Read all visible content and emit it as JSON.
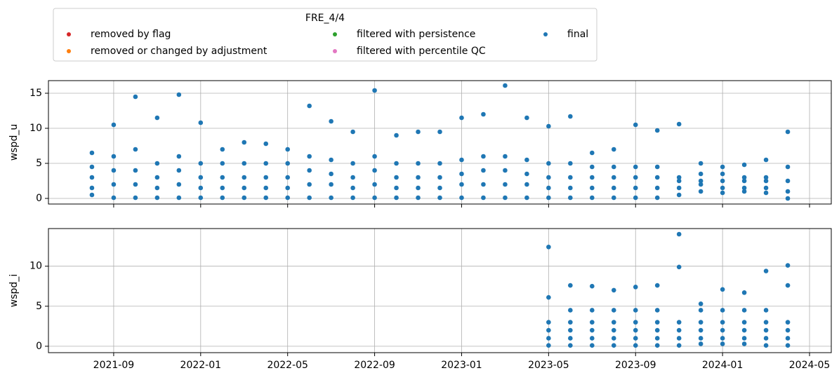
{
  "chart_data": [
    {
      "type": "scatter",
      "legend_title": "FRE_4/4",
      "ylabel": "wspd_u",
      "xlim": [
        "2021-06",
        "2024-06"
      ],
      "ylim": [
        -0.8,
        16.8
      ],
      "yticks": [
        0,
        5,
        10,
        15
      ],
      "grid": true,
      "series": [
        {
          "name": "removed by flag",
          "color": "#d62728",
          "x": [],
          "values": []
        },
        {
          "name": "removed or changed by adjustment",
          "color": "#ff7f0e",
          "x": [],
          "values": []
        },
        {
          "name": "filtered with persistence",
          "color": "#2ca02c",
          "x": [],
          "values": []
        },
        {
          "name": "filtered with percentile QC",
          "color": "#e377c2",
          "x": [],
          "values": []
        },
        {
          "name": "final",
          "color": "#1f77b4",
          "x": [
            "2021-08",
            "2021-08",
            "2021-08",
            "2021-08",
            "2021-08",
            "2021-09",
            "2021-09",
            "2021-09",
            "2021-09",
            "2021-09",
            "2021-10",
            "2021-10",
            "2021-10",
            "2021-10",
            "2021-10",
            "2021-11",
            "2021-11",
            "2021-11",
            "2021-11",
            "2021-11",
            "2021-12",
            "2021-12",
            "2021-12",
            "2021-12",
            "2021-12",
            "2022-01",
            "2022-01",
            "2022-01",
            "2022-01",
            "2022-01",
            "2022-02",
            "2022-02",
            "2022-02",
            "2022-02",
            "2022-02",
            "2022-03",
            "2022-03",
            "2022-03",
            "2022-03",
            "2022-03",
            "2022-04",
            "2022-04",
            "2022-04",
            "2022-04",
            "2022-04",
            "2022-05",
            "2022-05",
            "2022-05",
            "2022-05",
            "2022-05",
            "2022-06",
            "2022-06",
            "2022-06",
            "2022-06",
            "2022-06",
            "2022-07",
            "2022-07",
            "2022-07",
            "2022-07",
            "2022-07",
            "2022-08",
            "2022-08",
            "2022-08",
            "2022-08",
            "2022-08",
            "2022-09",
            "2022-09",
            "2022-09",
            "2022-09",
            "2022-09",
            "2022-10",
            "2022-10",
            "2022-10",
            "2022-10",
            "2022-10",
            "2022-11",
            "2022-11",
            "2022-11",
            "2022-11",
            "2022-11",
            "2022-12",
            "2022-12",
            "2022-12",
            "2022-12",
            "2022-12",
            "2023-01",
            "2023-01",
            "2023-01",
            "2023-01",
            "2023-01",
            "2023-02",
            "2023-02",
            "2023-02",
            "2023-02",
            "2023-02",
            "2023-03",
            "2023-03",
            "2023-03",
            "2023-03",
            "2023-03",
            "2023-04",
            "2023-04",
            "2023-04",
            "2023-04",
            "2023-04",
            "2023-05",
            "2023-05",
            "2023-05",
            "2023-05",
            "2023-05",
            "2023-06",
            "2023-06",
            "2023-06",
            "2023-06",
            "2023-06",
            "2023-07",
            "2023-07",
            "2023-07",
            "2023-07",
            "2023-07",
            "2023-08",
            "2023-08",
            "2023-08",
            "2023-08",
            "2023-08",
            "2023-09",
            "2023-09",
            "2023-09",
            "2023-09",
            "2023-09",
            "2023-10",
            "2023-10",
            "2023-10",
            "2023-10",
            "2023-10",
            "2023-11",
            "2023-11",
            "2023-11",
            "2023-11",
            "2023-11",
            "2023-12",
            "2023-12",
            "2023-12",
            "2023-12",
            "2023-12",
            "2024-01",
            "2024-01",
            "2024-01",
            "2024-01",
            "2024-01",
            "2024-02",
            "2024-02",
            "2024-02",
            "2024-02",
            "2024-02",
            "2024-03",
            "2024-03",
            "2024-03",
            "2024-03",
            "2024-03",
            "2024-04",
            "2024-04",
            "2024-04",
            "2024-04",
            "2024-04"
          ],
          "values": [
            0.5,
            1.5,
            3,
            4.5,
            6.5,
            0.1,
            2,
            4,
            6,
            10.5,
            0.1,
            2,
            4,
            7,
            14.5,
            0.1,
            1.5,
            3,
            5,
            11.5,
            0.1,
            2,
            4,
            6,
            14.8,
            0.1,
            1.5,
            3,
            5,
            10.8,
            0.1,
            1.5,
            3,
            5,
            7,
            0.1,
            1.5,
            3,
            5,
            8,
            0.1,
            1.5,
            3,
            5,
            7.8,
            0.1,
            1.5,
            3,
            5,
            7,
            0.1,
            2,
            4,
            6,
            13.2,
            0.1,
            2,
            3.5,
            5.5,
            11,
            0.1,
            1.5,
            3,
            5,
            9.5,
            0.1,
            2,
            4,
            6,
            15.4,
            0.1,
            1.5,
            3,
            5,
            9,
            0.1,
            1.5,
            3,
            5,
            9.5,
            0.1,
            1.5,
            3,
            5,
            9.5,
            0.1,
            2,
            3.5,
            5.5,
            11.5,
            0.1,
            2,
            4,
            6,
            12,
            0.1,
            2,
            4,
            6,
            16.1,
            0.1,
            2,
            3.5,
            5.5,
            11.5,
            0.1,
            1.5,
            3,
            5,
            10.3,
            0.1,
            1.5,
            3,
            5,
            11.7,
            0.1,
            1.5,
            3,
            4.5,
            6.5,
            0.1,
            1.5,
            3,
            4.5,
            7,
            0.1,
            1.5,
            3,
            4.5,
            10.5,
            0.1,
            1.5,
            3,
            4.5,
            9.7,
            0.5,
            1.5,
            2.5,
            3,
            10.6,
            1,
            2,
            2.5,
            3.5,
            5,
            0.8,
            1.5,
            2.5,
            3.5,
            4.5,
            1,
            1.5,
            2.5,
            3,
            4.8,
            0.8,
            1.5,
            2.5,
            3,
            5.5,
            0,
            1,
            2.5,
            4.5,
            9.5
          ]
        }
      ]
    },
    {
      "type": "scatter",
      "ylabel": "wspd_i",
      "xlim": [
        "2021-06",
        "2024-06"
      ],
      "ylim": [
        -0.8,
        14.7
      ],
      "yticks": [
        0,
        5,
        10
      ],
      "grid": true,
      "xticks": [
        "2021-09",
        "2022-01",
        "2022-05",
        "2022-09",
        "2023-01",
        "2023-05",
        "2023-09",
        "2024-01",
        "2024-05"
      ],
      "series": [
        {
          "color": "#1f77b4",
          "x": [
            "2023-05",
            "2023-05",
            "2023-05",
            "2023-05",
            "2023-05",
            "2023-05",
            "2023-06",
            "2023-06",
            "2023-06",
            "2023-06",
            "2023-06",
            "2023-06",
            "2023-07",
            "2023-07",
            "2023-07",
            "2023-07",
            "2023-07",
            "2023-07",
            "2023-08",
            "2023-08",
            "2023-08",
            "2023-08",
            "2023-08",
            "2023-08",
            "2023-09",
            "2023-09",
            "2023-09",
            "2023-09",
            "2023-09",
            "2023-09",
            "2023-10",
            "2023-10",
            "2023-10",
            "2023-10",
            "2023-10",
            "2023-10",
            "2023-11",
            "2023-11",
            "2023-11",
            "2023-11",
            "2023-11",
            "2023-11",
            "2023-12",
            "2023-12",
            "2023-12",
            "2023-12",
            "2023-12",
            "2023-12",
            "2024-01",
            "2024-01",
            "2024-01",
            "2024-01",
            "2024-01",
            "2024-01",
            "2024-02",
            "2024-02",
            "2024-02",
            "2024-02",
            "2024-02",
            "2024-02",
            "2024-03",
            "2024-03",
            "2024-03",
            "2024-03",
            "2024-03",
            "2024-03",
            "2024-04",
            "2024-04",
            "2024-04",
            "2024-04",
            "2024-04",
            "2024-04"
          ],
          "values": [
            0.1,
            1,
            2,
            3,
            6.1,
            12.4,
            0.1,
            1,
            2,
            3,
            4.5,
            7.6,
            0.1,
            1,
            2,
            3,
            4.5,
            7.5,
            0.1,
            1,
            2,
            3,
            4.5,
            7,
            0.1,
            1,
            2,
            3,
            4.5,
            7.4,
            0.1,
            1,
            2,
            3,
            4.5,
            7.6,
            0.1,
            1,
            2,
            3,
            9.9,
            14,
            0.3,
            1,
            2,
            3,
            4.5,
            5.3,
            0.3,
            1,
            2,
            3,
            4.5,
            7.1,
            0.3,
            1,
            2,
            3,
            4.5,
            6.7,
            0.1,
            1,
            2,
            3,
            4.5,
            9.4,
            0.1,
            1,
            2,
            3,
            7.6,
            10.1
          ]
        }
      ]
    }
  ]
}
